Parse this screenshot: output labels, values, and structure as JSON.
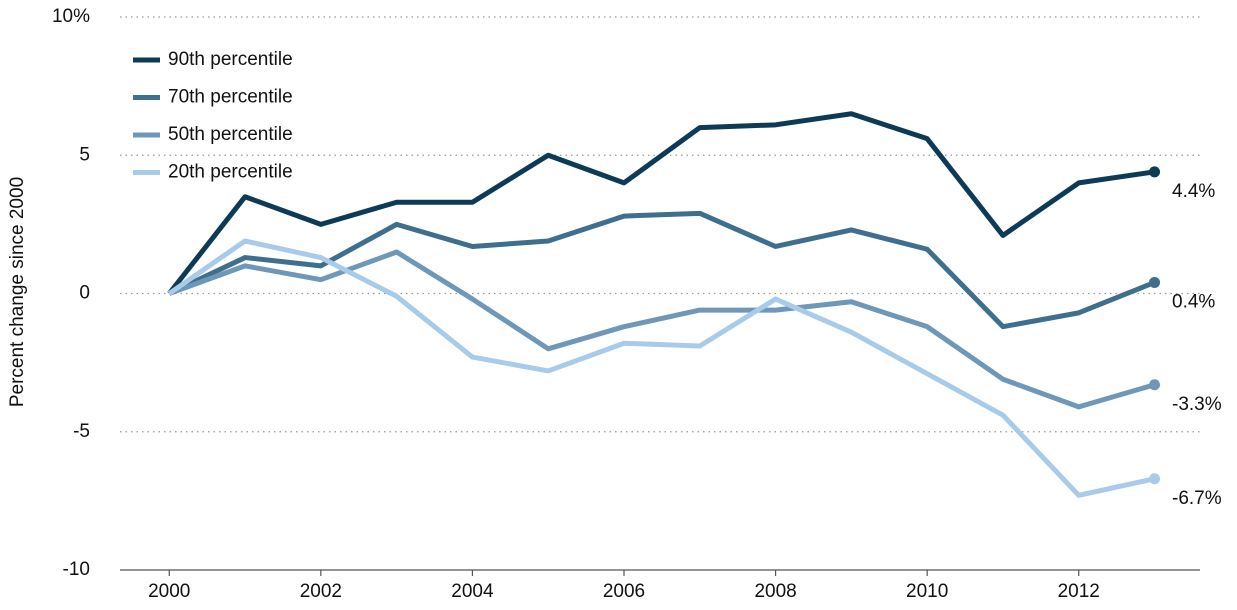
{
  "chart_data": {
    "type": "line",
    "y_label": "Percent change since 2000",
    "x": [
      2000,
      2001,
      2002,
      2003,
      2004,
      2005,
      2006,
      2007,
      2008,
      2009,
      2010,
      2011,
      2012,
      2013
    ],
    "xlim": [
      1999.35,
      2013.6
    ],
    "xticks": [
      2000,
      2002,
      2004,
      2006,
      2008,
      2010,
      2012
    ],
    "ylim": [
      -10,
      10
    ],
    "yticks": [
      {
        "value": 10,
        "label": "10%"
      },
      5,
      0,
      -5,
      -10
    ],
    "grid": true,
    "legend": "upper left",
    "series": [
      {
        "name": "90th percentile",
        "color": "#0d3b55",
        "values": [
          0,
          3.5,
          2.5,
          3.3,
          3.3,
          5.0,
          4.0,
          6.0,
          6.1,
          6.5,
          5.6,
          2.1,
          4.0,
          4.4
        ],
        "value_labels": [
          null,
          null,
          null,
          null,
          null,
          null,
          null,
          null,
          null,
          null,
          null,
          null,
          null,
          "4.4%"
        ]
      },
      {
        "name": "70th percentile",
        "color": "#3f6f8f",
        "values": [
          0,
          1.3,
          1.0,
          2.5,
          1.7,
          1.9,
          2.8,
          2.9,
          1.7,
          2.3,
          1.6,
          -1.2,
          -0.7,
          0.4
        ],
        "value_labels": [
          null,
          null,
          null,
          null,
          null,
          null,
          null,
          null,
          null,
          null,
          null,
          null,
          null,
          "0.4%"
        ]
      },
      {
        "name": "50th percentile",
        "color": "#6e97b8",
        "values": [
          0,
          1.0,
          0.5,
          1.5,
          -0.2,
          -2.0,
          -1.2,
          -0.6,
          -0.6,
          -0.3,
          -1.2,
          -3.1,
          -4.1,
          -3.3
        ],
        "value_labels": [
          null,
          null,
          null,
          null,
          null,
          null,
          null,
          null,
          null,
          null,
          null,
          null,
          null,
          "-3.3%"
        ]
      },
      {
        "name": "20th percentile",
        "color": "#a9cbea",
        "values": [
          0,
          1.9,
          1.3,
          -0.1,
          -2.3,
          -2.8,
          -1.8,
          -1.9,
          -0.2,
          -1.4,
          -2.9,
          -4.4,
          -7.3,
          -6.7
        ],
        "value_labels": [
          null,
          null,
          null,
          null,
          null,
          null,
          null,
          null,
          null,
          null,
          null,
          null,
          null,
          "-6.7%"
        ]
      }
    ]
  }
}
